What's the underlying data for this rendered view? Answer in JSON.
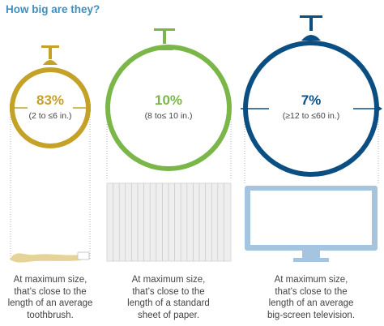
{
  "title": "How big are they?",
  "colors": {
    "title": "#3f8fbe",
    "small": "#c4a227",
    "medium": "#7ab648",
    "large": "#0b4f82",
    "guide": "#b0b0b0",
    "text": "#444444",
    "paper_fill": "#eeeeee",
    "tv_fill": "#a5c4e0"
  },
  "groups": [
    {
      "id": "small",
      "percent": 83,
      "percent_label": "83%",
      "range": "(2 to ≤6 in.)",
      "caption": [
        "At maximum size,",
        "that’s close to the",
        "length of an average",
        "toothbrush."
      ],
      "object": "toothbrush"
    },
    {
      "id": "medium",
      "percent": 10,
      "percent_label": "10%",
      "range": "(8 to≤ 10 in.)",
      "caption": [
        "At maximum size,",
        "that’s close to the",
        "length of a standard",
        "sheet of paper."
      ],
      "object": "sheet-of-paper"
    },
    {
      "id": "large",
      "percent": 7,
      "percent_label": "7%",
      "range": "(≥12 to ≤60 in.)",
      "caption": [
        "At maximum size,",
        "that’s close to the",
        "length of an average",
        "big-screen television."
      ],
      "object": "big-screen-television"
    }
  ]
}
